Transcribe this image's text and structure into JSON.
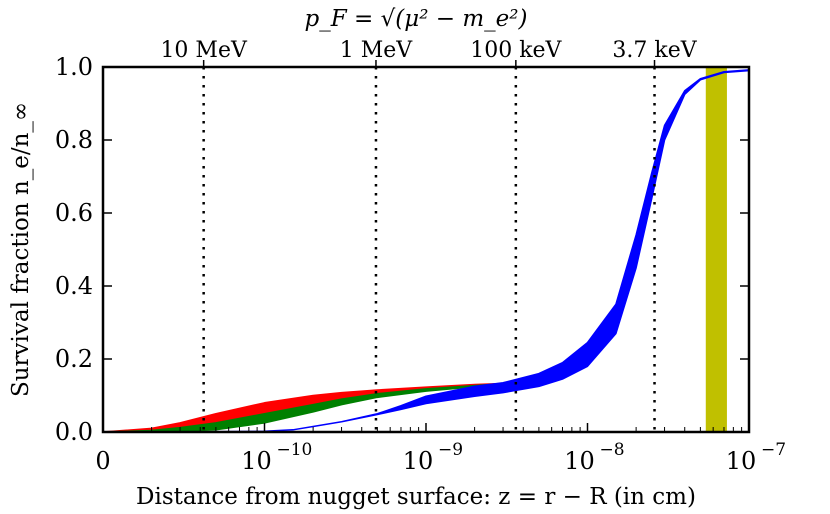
{
  "chart_data": {
    "type": "area",
    "title": "",
    "xscale": "log",
    "xlim": [
      1e-11,
      1e-07
    ],
    "ylim": [
      0,
      1.0
    ],
    "xlabel": "Distance from nugget surface: z = r − R (in cm)",
    "ylabel": "Survival fraction n_e/n_∞",
    "x_tick_values": [
      1e-11,
      1e-10,
      1e-09,
      1e-08,
      1e-07
    ],
    "x_tick_labels": [
      "0",
      "10",
      "10",
      "10",
      "10"
    ],
    "x_tick_exponents": [
      "",
      "−10",
      "−9",
      "−8",
      "−7"
    ],
    "y_ticks": [
      0.0,
      0.2,
      0.4,
      0.6,
      0.8,
      1.0
    ],
    "y_tick_labels": [
      "0.0",
      "0.2",
      "0.4",
      "0.6",
      "0.8",
      "1.0"
    ],
    "top_axis": {
      "label": "p_F = √(μ² − m_e²)",
      "markers": [
        {
          "label": "10 MeV",
          "x": 4.2e-11
        },
        {
          "label": "1 MeV",
          "x": 4.9e-10
        },
        {
          "label": "100 keV",
          "x": 3.6e-09
        },
        {
          "label": "3.7 keV",
          "x": 2.6e-08
        }
      ]
    },
    "series": [
      {
        "name": "red band",
        "color": "#ff0000",
        "x": [
          1e-11,
          2e-11,
          3e-11,
          5e-11,
          1e-10,
          2e-10,
          3e-10,
          5e-10,
          1e-09,
          2e-09,
          3e-09
        ],
        "lower": [
          0.0,
          0.004,
          0.012,
          0.025,
          0.05,
          0.075,
          0.09,
          0.105,
          0.118,
          0.127,
          0.132
        ],
        "upper": [
          0.0,
          0.01,
          0.025,
          0.05,
          0.08,
          0.1,
          0.108,
          0.115,
          0.123,
          0.13,
          0.133
        ]
      },
      {
        "name": "green band",
        "color": "#008000",
        "x": [
          1e-11,
          2e-11,
          3e-11,
          5e-11,
          1e-10,
          2e-10,
          3e-10,
          5e-10,
          1e-09,
          2e-09,
          3e-09
        ],
        "lower": [
          0.0,
          0.001,
          0.002,
          0.006,
          0.025,
          0.055,
          0.075,
          0.095,
          0.112,
          0.124,
          0.13
        ],
        "upper": [
          0.0,
          0.004,
          0.012,
          0.025,
          0.05,
          0.075,
          0.09,
          0.105,
          0.118,
          0.127,
          0.133
        ]
      },
      {
        "name": "blue band",
        "color": "#0000ff",
        "x": [
          1e-11,
          3e-11,
          1e-10,
          1.5e-10,
          2e-10,
          3e-10,
          5e-10,
          7e-10,
          1e-09,
          2e-09,
          3e-09,
          5e-09,
          7e-09,
          1e-08,
          1.5e-08,
          2e-08,
          2.5e-08,
          3e-08,
          4e-08,
          5e-08,
          7e-08,
          1e-07
        ],
        "lower": [
          0.0,
          0.0,
          0.002,
          0.006,
          0.015,
          0.028,
          0.048,
          0.062,
          0.078,
          0.098,
          0.108,
          0.125,
          0.145,
          0.18,
          0.27,
          0.45,
          0.64,
          0.8,
          0.925,
          0.965,
          0.985,
          0.99
        ],
        "upper": [
          0.0,
          0.0,
          0.002,
          0.006,
          0.015,
          0.028,
          0.05,
          0.072,
          0.098,
          0.125,
          0.135,
          0.16,
          0.19,
          0.245,
          0.35,
          0.54,
          0.71,
          0.84,
          0.935,
          0.968,
          0.987,
          0.992
        ]
      }
    ],
    "shaded_region": {
      "name": "olive band",
      "color": "#c0c000",
      "x_range": [
        5.4e-08,
        7.3e-08
      ]
    }
  }
}
